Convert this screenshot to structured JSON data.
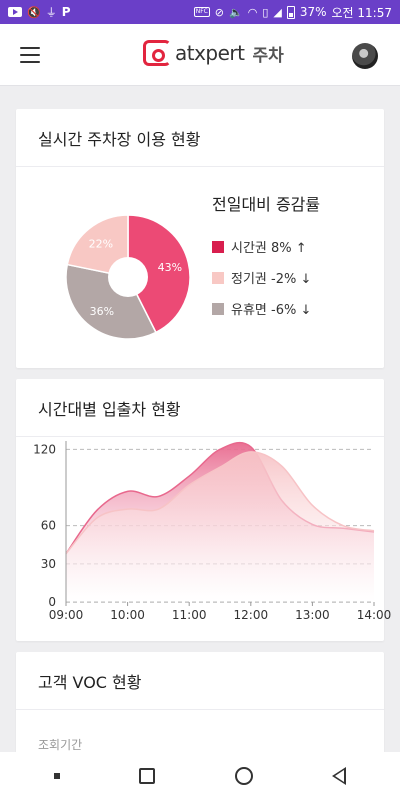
{
  "status_bar": {
    "notification_icons": [
      "youtube-icon",
      "muted-notification-icon",
      "usb-icon",
      "p-app-icon"
    ],
    "system_icons": [
      "nfc-icon",
      "vibrate-off-icon",
      "volume-off-icon",
      "wifi-icon",
      "no-sim-icon",
      "signal-icon"
    ],
    "nfc_label": "NFC",
    "battery": "37%",
    "time": "오전 11:57"
  },
  "app_bar": {
    "logo_text": "atxpert",
    "logo_sub": "주차",
    "menu_icon": "hamburger-menu-icon",
    "avatar_icon": "user-avatar"
  },
  "realtime": {
    "title": "실시간 주차장 이용 현황",
    "legend_title": "전일대비 증감률",
    "chart_data": {
      "type": "pie",
      "slices": [
        {
          "label": "시간권",
          "value": 43,
          "display": "43%",
          "color": "#ec4a75",
          "change": "시간권 8% ↑"
        },
        {
          "label": "유휴면",
          "value": 36,
          "display": "36%",
          "color": "#b3a7a6",
          "change": "유휴면 -6% ↓"
        },
        {
          "label": "정기권",
          "value": 22,
          "display": "22%",
          "color": "#f8c8c4",
          "change": "정기권 -2% ↓"
        }
      ],
      "donut_hole": true
    }
  },
  "hourly": {
    "title": "시간대별 입출차 현황",
    "chart_data": {
      "type": "area",
      "x": [
        "09:00",
        "09:30",
        "10:00",
        "10:30",
        "11:00",
        "11:30",
        "12:00",
        "12:30",
        "13:00",
        "13:30",
        "14:00"
      ],
      "series": [
        {
          "color": "#e8688d",
          "values": [
            38,
            72,
            87,
            83,
            99,
            120,
            122,
            80,
            61,
            58,
            55
          ]
        },
        {
          "color": "#f7c3c6",
          "values": [
            38,
            66,
            73,
            73,
            92,
            106,
            118,
            107,
            76,
            60,
            56
          ]
        }
      ],
      "yticks": [
        0,
        30,
        60,
        120
      ],
      "ylim": [
        0,
        125
      ],
      "grid": true
    }
  },
  "voc": {
    "title": "고객 VOC 현황",
    "period_label": "조회기간"
  },
  "nav_bar": {
    "items": [
      "recent-apps-dot-icon",
      "overview-square-icon",
      "home-circle-icon",
      "back-triangle-icon"
    ]
  }
}
